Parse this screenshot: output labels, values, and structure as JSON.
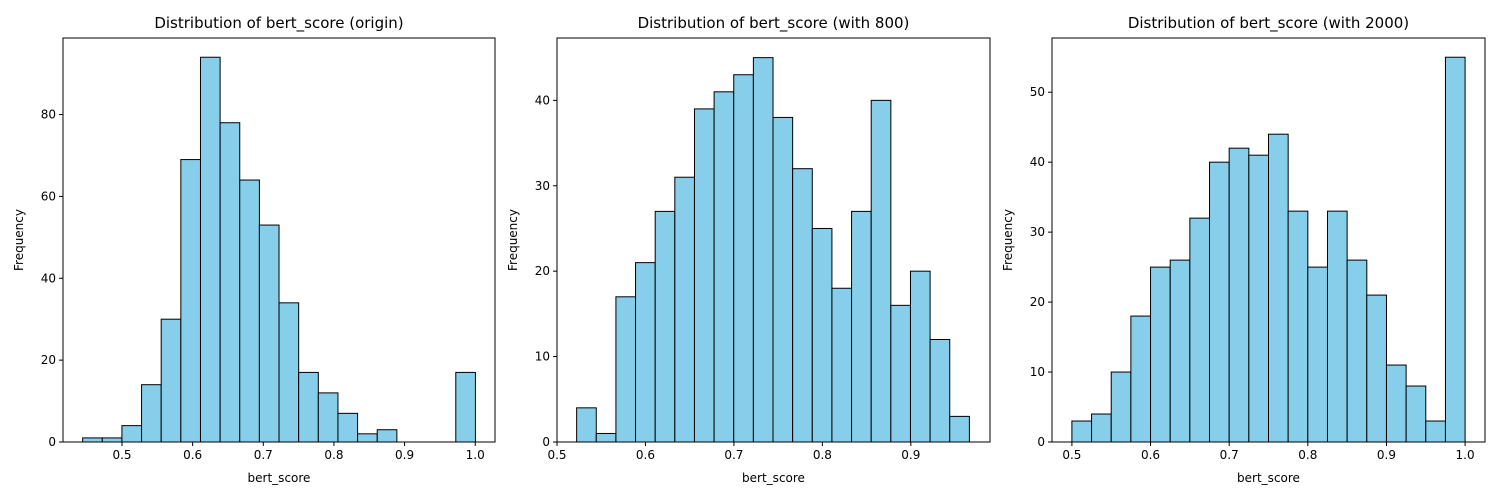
{
  "colors": {
    "bar_fill": "#87ceeb",
    "bar_edge": "#000000",
    "axes": "#000000",
    "background": "#ffffff"
  },
  "chart_data": [
    {
      "type": "bar",
      "title": "Distribution of bert_score (origin)",
      "xlabel": "bert_score",
      "ylabel": "Frequency",
      "grid": false,
      "xlim": [
        0.4165,
        1.028
      ],
      "ylim": [
        0,
        98.7
      ],
      "xticks": [
        0.5,
        0.6,
        0.7,
        0.8,
        0.9,
        1.0
      ],
      "xtick_labels": [
        "0.5",
        "0.6",
        "0.7",
        "0.8",
        "0.9",
        "1.0"
      ],
      "yticks": [
        0,
        20,
        40,
        60,
        80
      ],
      "ytick_labels": [
        "0",
        "20",
        "40",
        "60",
        "80"
      ],
      "bin_edges": [
        0.4443,
        0.4721,
        0.4999,
        0.5277,
        0.5555,
        0.5833,
        0.6111,
        0.6389,
        0.6667,
        0.6945,
        0.7223,
        0.7501,
        0.7779,
        0.8057,
        0.8335,
        0.8613,
        0.8891,
        0.9169,
        0.9447,
        0.9725,
        1.0003
      ],
      "values": [
        1,
        1,
        4,
        14,
        30,
        69,
        94,
        78,
        64,
        53,
        34,
        17,
        12,
        7,
        2,
        3,
        0,
        0,
        0,
        17
      ]
    },
    {
      "type": "bar",
      "title": "Distribution of bert_score (with 800)",
      "xlabel": "bert_score",
      "ylabel": "Frequency",
      "grid": false,
      "xlim": [
        0.5,
        0.9895
      ],
      "ylim": [
        0,
        47.3
      ],
      "xticks": [
        0.5,
        0.6,
        0.7,
        0.8,
        0.9
      ],
      "xtick_labels": [
        "0.5",
        "0.6",
        "0.7",
        "0.8",
        "0.9"
      ],
      "yticks": [
        0,
        10,
        20,
        30,
        40
      ],
      "ytick_labels": [
        "0",
        "10",
        "20",
        "30",
        "40"
      ],
      "bin_edges": [
        0.5222,
        0.5444,
        0.5666,
        0.5888,
        0.611,
        0.6332,
        0.6554,
        0.6776,
        0.6998,
        0.722,
        0.7442,
        0.7664,
        0.7886,
        0.8108,
        0.833,
        0.8552,
        0.8774,
        0.8996,
        0.9218,
        0.944,
        0.9662
      ],
      "values": [
        4,
        1,
        17,
        21,
        27,
        31,
        39,
        41,
        43,
        45,
        38,
        32,
        25,
        18,
        27,
        40,
        16,
        20,
        12,
        3
      ]
    },
    {
      "type": "bar",
      "title": "Distribution of bert_score (with 2000)",
      "xlabel": "bert_score",
      "ylabel": "Frequency",
      "grid": false,
      "xlim": [
        0.4747,
        1.0253
      ],
      "ylim": [
        0,
        57.75
      ],
      "xticks": [
        0.5,
        0.6,
        0.7,
        0.8,
        0.9,
        1.0
      ],
      "xtick_labels": [
        "0.5",
        "0.6",
        "0.7",
        "0.8",
        "0.9",
        "1.0"
      ],
      "yticks": [
        0,
        10,
        20,
        30,
        40,
        50
      ],
      "ytick_labels": [
        "0",
        "10",
        "20",
        "30",
        "40",
        "50"
      ],
      "bin_edges": [
        0.5,
        0.525,
        0.55,
        0.575,
        0.6,
        0.625,
        0.65,
        0.675,
        0.7,
        0.725,
        0.75,
        0.775,
        0.8,
        0.825,
        0.85,
        0.875,
        0.9,
        0.925,
        0.95,
        0.975,
        1.0
      ],
      "values": [
        3,
        4,
        10,
        18,
        25,
        26,
        32,
        40,
        42,
        41,
        44,
        33,
        25,
        33,
        26,
        21,
        11,
        8,
        3,
        55
      ]
    }
  ]
}
